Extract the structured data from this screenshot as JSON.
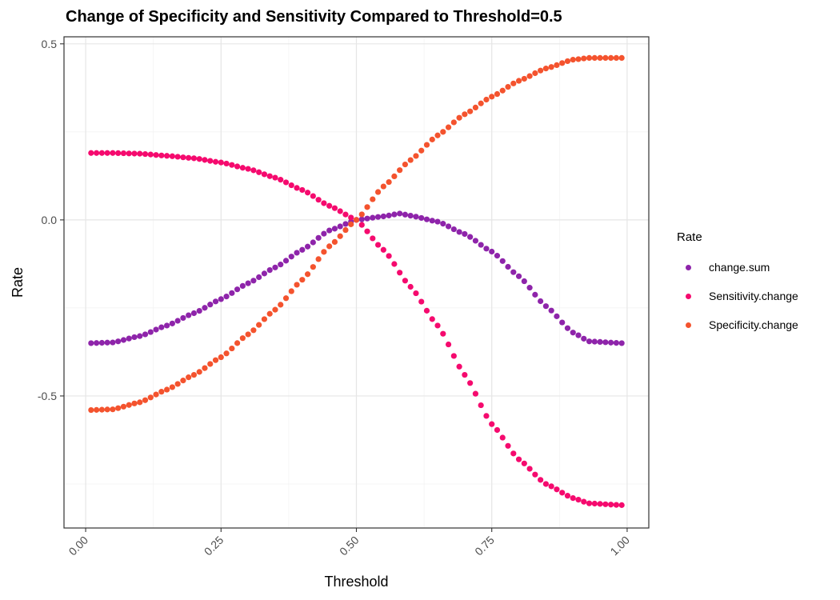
{
  "chart_data": {
    "type": "scatter",
    "title": "Change of Specificity and Sensitivity Compared to Threshold=0.5",
    "xlabel": "Threshold",
    "ylabel": "Rate",
    "xlim": [
      -0.04,
      1.04
    ],
    "ylim": [
      -0.875,
      0.52
    ],
    "xticks": [
      "0.00",
      "0.25",
      "0.50",
      "0.75",
      "1.00"
    ],
    "yticks": [
      "0.5",
      "0.0",
      "-0.5"
    ],
    "grid": true,
    "legend": {
      "title": "Rate",
      "position": "right",
      "items": [
        "change.sum",
        "Sensitivity.change",
        "Specificity.change"
      ]
    },
    "series": [
      {
        "name": "change.sum",
        "color": "#8E24AA",
        "x_start": 0.01,
        "x_step": 0.01,
        "keypoints": [
          [
            0.01,
            -0.35
          ],
          [
            0.05,
            -0.348
          ],
          [
            0.1,
            -0.33
          ],
          [
            0.15,
            -0.3
          ],
          [
            0.2,
            -0.265
          ],
          [
            0.25,
            -0.225
          ],
          [
            0.3,
            -0.18
          ],
          [
            0.35,
            -0.135
          ],
          [
            0.4,
            -0.085
          ],
          [
            0.45,
            -0.03
          ],
          [
            0.5,
            0.0
          ],
          [
            0.55,
            0.01
          ],
          [
            0.58,
            0.018
          ],
          [
            0.6,
            0.012
          ],
          [
            0.65,
            -0.005
          ],
          [
            0.7,
            -0.04
          ],
          [
            0.75,
            -0.09
          ],
          [
            0.8,
            -0.16
          ],
          [
            0.85,
            -0.245
          ],
          [
            0.9,
            -0.32
          ],
          [
            0.93,
            -0.345
          ],
          [
            0.99,
            -0.35
          ]
        ]
      },
      {
        "name": "Sensitivity.change",
        "color": "#F50A6E",
        "x_start": 0.01,
        "x_step": 0.01,
        "keypoints": [
          [
            0.01,
            0.19
          ],
          [
            0.05,
            0.19
          ],
          [
            0.1,
            0.188
          ],
          [
            0.15,
            0.182
          ],
          [
            0.2,
            0.175
          ],
          [
            0.25,
            0.163
          ],
          [
            0.3,
            0.145
          ],
          [
            0.35,
            0.12
          ],
          [
            0.4,
            0.085
          ],
          [
            0.45,
            0.04
          ],
          [
            0.5,
            0.0
          ],
          [
            0.55,
            -0.085
          ],
          [
            0.6,
            -0.19
          ],
          [
            0.65,
            -0.3
          ],
          [
            0.7,
            -0.44
          ],
          [
            0.75,
            -0.58
          ],
          [
            0.8,
            -0.68
          ],
          [
            0.85,
            -0.75
          ],
          [
            0.9,
            -0.79
          ],
          [
            0.93,
            -0.805
          ],
          [
            0.99,
            -0.81
          ]
        ]
      },
      {
        "name": "Specificity.change",
        "color": "#F4532E",
        "x_start": 0.01,
        "x_step": 0.01,
        "keypoints": [
          [
            0.01,
            -0.54
          ],
          [
            0.05,
            -0.538
          ],
          [
            0.1,
            -0.518
          ],
          [
            0.15,
            -0.482
          ],
          [
            0.2,
            -0.44
          ],
          [
            0.25,
            -0.39
          ],
          [
            0.3,
            -0.325
          ],
          [
            0.35,
            -0.255
          ],
          [
            0.4,
            -0.17
          ],
          [
            0.45,
            -0.075
          ],
          [
            0.5,
            0.0
          ],
          [
            0.55,
            0.095
          ],
          [
            0.6,
            0.17
          ],
          [
            0.65,
            0.24
          ],
          [
            0.7,
            0.3
          ],
          [
            0.75,
            0.35
          ],
          [
            0.8,
            0.395
          ],
          [
            0.85,
            0.43
          ],
          [
            0.9,
            0.455
          ],
          [
            0.93,
            0.46
          ],
          [
            0.99,
            0.46
          ]
        ]
      }
    ]
  }
}
